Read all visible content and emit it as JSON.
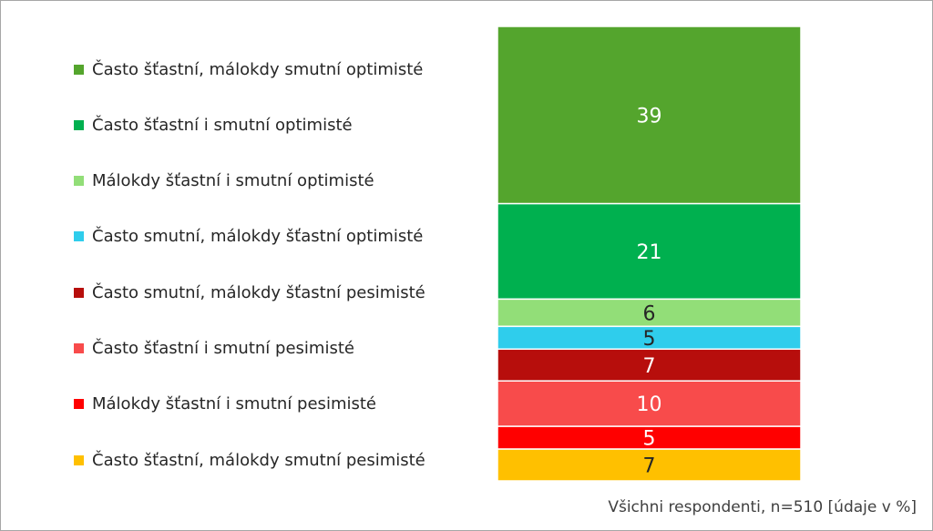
{
  "chart_data": {
    "type": "bar",
    "stacked": true,
    "categories": [
      "Všichni respondenti"
    ],
    "series": [
      {
        "name": "Často šťastní, málokdy smutní optimisté",
        "values": [
          39
        ],
        "color": "#54a52d",
        "label_color": "#ffffff"
      },
      {
        "name": "Často šťastní i smutní optimisté",
        "values": [
          21
        ],
        "color": "#00b04f",
        "label_color": "#ffffff"
      },
      {
        "name": "Málokdy šťastní i smutní optimisté",
        "values": [
          6
        ],
        "color": "#92de78",
        "label_color": "#262626"
      },
      {
        "name": "Často smutní, málokdy šťastní optimisté",
        "values": [
          5
        ],
        "color": "#2fcdec",
        "label_color": "#262626"
      },
      {
        "name": "Často smutní, málokdy šťastní pesimisté",
        "values": [
          7
        ],
        "color": "#b70e0c",
        "label_color": "#ffffff"
      },
      {
        "name": "Často šťastní i smutní pesimisté",
        "values": [
          10
        ],
        "color": "#f84b4b",
        "label_color": "#ffffff"
      },
      {
        "name": "Málokdy šťastní i smutní pesimisté",
        "values": [
          5
        ],
        "color": "#ff0000",
        "label_color": "#ffffff"
      },
      {
        "name": "Často šťastní, málokdy smutní pesimisté",
        "values": [
          7
        ],
        "color": "#ffc000",
        "label_color": "#262626"
      }
    ],
    "legend_position": "left",
    "grid": false,
    "note": "Všichni respondenti, n=510 [údaje v %]"
  }
}
